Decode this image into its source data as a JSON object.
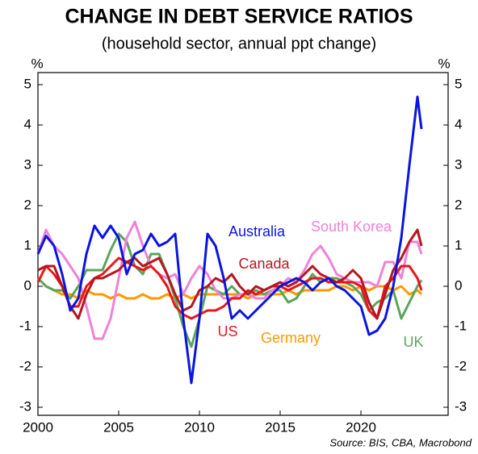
{
  "chart_data": {
    "type": "line",
    "title": "CHANGE IN DEBT SERVICE RATIOS",
    "subtitle": "(household sector, annual ppt change)",
    "ylabel": "%",
    "y2label": "%",
    "source": "Source: BIS, CBA, Macrobond",
    "x": [
      2000,
      2000.5,
      2001,
      2001.5,
      2002,
      2002.5,
      2003,
      2003.5,
      2004,
      2004.5,
      2005,
      2005.5,
      2006,
      2006.5,
      2007,
      2007.5,
      2008,
      2008.5,
      2009,
      2009.5,
      2010,
      2010.5,
      2011,
      2011.5,
      2012,
      2012.5,
      2013,
      2013.5,
      2014,
      2014.5,
      2015,
      2015.5,
      2016,
      2016.5,
      2017,
      2017.5,
      2018,
      2018.5,
      2019,
      2019.5,
      2020,
      2020.5,
      2021,
      2021.5,
      2022,
      2022.5,
      2023,
      2023.5,
      2023.75
    ],
    "xlim": [
      2000,
      2025.4
    ],
    "xticks": [
      2000,
      2005,
      2010,
      2015,
      2020
    ],
    "ylim": [
      -3.2,
      5.3
    ],
    "yticks": [
      -3,
      -2,
      -1,
      0,
      1,
      2,
      3,
      4,
      5
    ],
    "y2lim": [
      -3.2,
      5.3
    ],
    "y2ticks": [
      -3,
      -2,
      -1,
      0,
      1,
      2,
      3,
      4,
      5
    ],
    "series": [
      {
        "name": "Germany",
        "color": "#ff9900",
        "values": [
          0.2,
          0,
          -0.1,
          -0.2,
          -0.2,
          -0.3,
          -0.1,
          -0.2,
          -0.2,
          -0.3,
          -0.2,
          -0.3,
          -0.3,
          -0.2,
          -0.3,
          -0.3,
          -0.2,
          -0.3,
          -0.2,
          -0.3,
          -0.2,
          -0.2,
          -0.2,
          -0.2,
          -0.2,
          -0.2,
          -0.3,
          -0.2,
          -0.2,
          -0.2,
          -0.2,
          -0.1,
          -0.2,
          -0.1,
          -0.1,
          -0.1,
          -0.1,
          0,
          0,
          -0.1,
          0,
          -0.1,
          0,
          0,
          -0.1,
          0,
          -0.2,
          -0.1,
          -0.2
        ]
      },
      {
        "name": "UK",
        "color": "#5aa55a",
        "values": [
          0.2,
          0,
          -0.1,
          -0.1,
          -0.3,
          0,
          0.4,
          0.4,
          0.4,
          0.9,
          1.3,
          1.1,
          0.5,
          0.3,
          0.8,
          0.8,
          0.3,
          -0.3,
          -1.0,
          -1.5,
          -0.8,
          0,
          -0.1,
          -0.2,
          0,
          -0.2,
          -0.2,
          -0.1,
          -0.2,
          -0.1,
          -0.1,
          -0.4,
          -0.3,
          0,
          0.3,
          0.1,
          0.2,
          0.2,
          0.1,
          0,
          -0.2,
          -0.6,
          -0.4,
          -0.3,
          -0.1,
          -0.8,
          -0.4,
          0,
          0.15
        ]
      },
      {
        "name": "South Korea",
        "color": "#ee82d8",
        "values": [
          0.8,
          1.4,
          1.0,
          0.8,
          0.5,
          0.2,
          -0.5,
          -1.3,
          -1.3,
          -0.8,
          0.2,
          1.2,
          1.6,
          1.0,
          0.5,
          0.3,
          0.2,
          0.3,
          -0.2,
          0.2,
          0.5,
          0.3,
          -0.1,
          -0.3,
          -0.3,
          -0.2,
          -0.2,
          -0.3,
          -0.3,
          -0.1,
          0,
          0.2,
          0.1,
          0.4,
          0.8,
          1.0,
          0.7,
          0.3,
          0.2,
          0.1,
          0.1,
          0.1,
          0,
          0.6,
          0.6,
          0.2,
          1.1,
          1.1,
          0.8
        ]
      },
      {
        "name": "US",
        "color": "#e8161b",
        "values": [
          0.1,
          0.5,
          0.3,
          0,
          -0.5,
          -0.5,
          0,
          0.2,
          0.3,
          0.5,
          0.7,
          0.6,
          0.5,
          0.4,
          0.5,
          0.3,
          0,
          -0.5,
          -0.7,
          -0.8,
          -0.7,
          -0.6,
          -0.6,
          -0.5,
          -0.3,
          -0.3,
          -0.1,
          -0.2,
          -0.1,
          0,
          0,
          -0.1,
          0,
          0.1,
          0.2,
          0.2,
          0.1,
          0.1,
          0.1,
          0.1,
          0,
          -0.6,
          -0.8,
          0,
          0.2,
          0.5,
          0.5,
          0.2,
          -0.1
        ]
      },
      {
        "name": "Canada",
        "color": "#b5161f",
        "values": [
          0.4,
          0.5,
          0.5,
          0,
          -0.5,
          -0.8,
          -0.2,
          0.2,
          0.2,
          0.3,
          0.4,
          0.6,
          0.7,
          0.5,
          0.6,
          0.7,
          0.3,
          -0.2,
          -0.6,
          -0.5,
          -0.1,
          0,
          0.2,
          0.1,
          0.3,
          0,
          -0.2,
          0,
          -0.1,
          0,
          0.1,
          0,
          0.1,
          0.3,
          0.5,
          0.3,
          0.2,
          0.1,
          0.2,
          0.4,
          0.2,
          -0.4,
          -0.8,
          -0.2,
          0.4,
          0.7,
          1.1,
          1.4,
          1.0
        ]
      },
      {
        "name": "Australia",
        "color": "#0a14e0",
        "values": [
          0.8,
          1.25,
          1.0,
          0.3,
          -0.6,
          -0.3,
          0.8,
          1.5,
          1.2,
          1.5,
          1.2,
          0.3,
          0.8,
          0.9,
          1.3,
          1.0,
          1.1,
          1.3,
          -0.8,
          -2.4,
          -0.8,
          1.3,
          1.0,
          0.2,
          -0.8,
          -0.6,
          -0.8,
          -0.6,
          -0.4,
          -0.2,
          0,
          0.1,
          0.2,
          0.1,
          -0.1,
          0.1,
          0.2,
          0,
          -0.1,
          -0.3,
          -0.5,
          -1.2,
          -1.1,
          -0.8,
          0,
          1.2,
          3.0,
          4.7,
          3.9
        ]
      }
    ]
  }
}
